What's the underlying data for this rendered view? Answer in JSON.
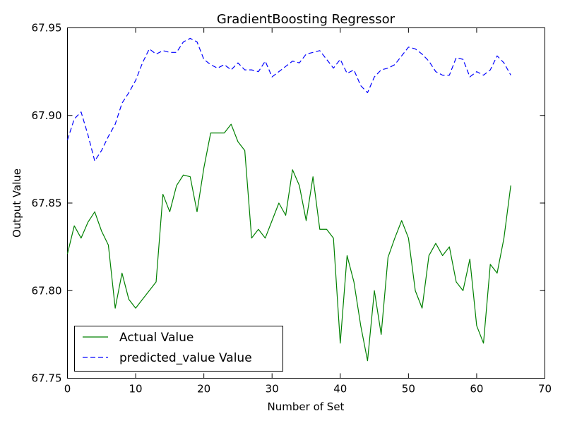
{
  "chart_data": {
    "type": "line",
    "title": "GradientBoosting Regressor",
    "xlabel": "Number of Set",
    "ylabel": "Output Value",
    "xlim": [
      0,
      70
    ],
    "ylim": [
      67.75,
      67.95
    ],
    "xticks": [
      "0",
      "10",
      "20",
      "30",
      "40",
      "50",
      "60",
      "70"
    ],
    "yticks": [
      "67.75",
      "67.80",
      "67.85",
      "67.90",
      "67.95"
    ],
    "grid": false,
    "legend": "lower-left",
    "series": [
      {
        "name": "Actual Value",
        "color": "#008000",
        "style": "solid",
        "x": [
          0,
          1,
          2,
          3,
          4,
          5,
          6,
          7,
          8,
          9,
          10,
          11,
          12,
          13,
          14,
          15,
          16,
          17,
          18,
          19,
          20,
          21,
          22,
          23,
          24,
          25,
          26,
          27,
          28,
          29,
          30,
          31,
          32,
          33,
          34,
          35,
          36,
          37,
          38,
          39,
          40,
          41,
          42,
          43,
          44,
          45,
          46,
          47,
          48,
          49,
          50,
          51,
          52,
          53,
          54,
          55,
          56,
          57,
          58,
          59,
          60,
          61,
          62,
          63,
          64,
          65
        ],
        "values": [
          67.821,
          67.837,
          67.83,
          67.839,
          67.845,
          67.834,
          67.826,
          67.79,
          67.81,
          67.795,
          67.79,
          67.795,
          67.8,
          67.805,
          67.855,
          67.845,
          67.86,
          67.866,
          67.865,
          67.845,
          67.87,
          67.89,
          67.89,
          67.89,
          67.895,
          67.885,
          67.88,
          67.83,
          67.835,
          67.83,
          67.84,
          67.85,
          67.843,
          67.869,
          67.86,
          67.84,
          67.865,
          67.835,
          67.835,
          67.83,
          67.77,
          67.82,
          67.805,
          67.78,
          67.76,
          67.8,
          67.775,
          67.819,
          67.83,
          67.84,
          67.83,
          67.8,
          67.79,
          67.82,
          67.827,
          67.82,
          67.825,
          67.805,
          67.8,
          67.818,
          67.78,
          67.77,
          67.815,
          67.81,
          67.83,
          67.86
        ]
      },
      {
        "name": "predicted_value Value",
        "color": "#0000ff",
        "style": "dashed",
        "x": [
          0,
          1,
          2,
          3,
          4,
          5,
          6,
          7,
          8,
          9,
          10,
          11,
          12,
          13,
          14,
          15,
          16,
          17,
          18,
          19,
          20,
          21,
          22,
          23,
          24,
          25,
          26,
          27,
          28,
          29,
          30,
          31,
          32,
          33,
          34,
          35,
          36,
          37,
          38,
          39,
          40,
          41,
          42,
          43,
          44,
          45,
          46,
          47,
          48,
          49,
          50,
          51,
          52,
          53,
          54,
          55,
          56,
          57,
          58,
          59,
          60,
          61,
          62,
          63,
          64,
          65
        ],
        "values": [
          67.886,
          67.898,
          67.902,
          67.889,
          67.874,
          67.88,
          67.888,
          67.895,
          67.907,
          67.913,
          67.92,
          67.93,
          67.938,
          67.935,
          67.937,
          67.936,
          67.936,
          67.942,
          67.944,
          67.942,
          67.932,
          67.929,
          67.927,
          67.929,
          67.926,
          67.93,
          67.926,
          67.926,
          67.925,
          67.931,
          67.922,
          67.925,
          67.928,
          67.931,
          67.93,
          67.935,
          67.936,
          67.937,
          67.932,
          67.927,
          67.932,
          67.924,
          67.926,
          67.917,
          67.913,
          67.922,
          67.926,
          67.927,
          67.929,
          67.934,
          67.939,
          67.938,
          67.935,
          67.931,
          67.925,
          67.923,
          67.923,
          67.933,
          67.932,
          67.922,
          67.925,
          67.923,
          67.926,
          67.934,
          67.93,
          67.923
        ]
      }
    ]
  }
}
